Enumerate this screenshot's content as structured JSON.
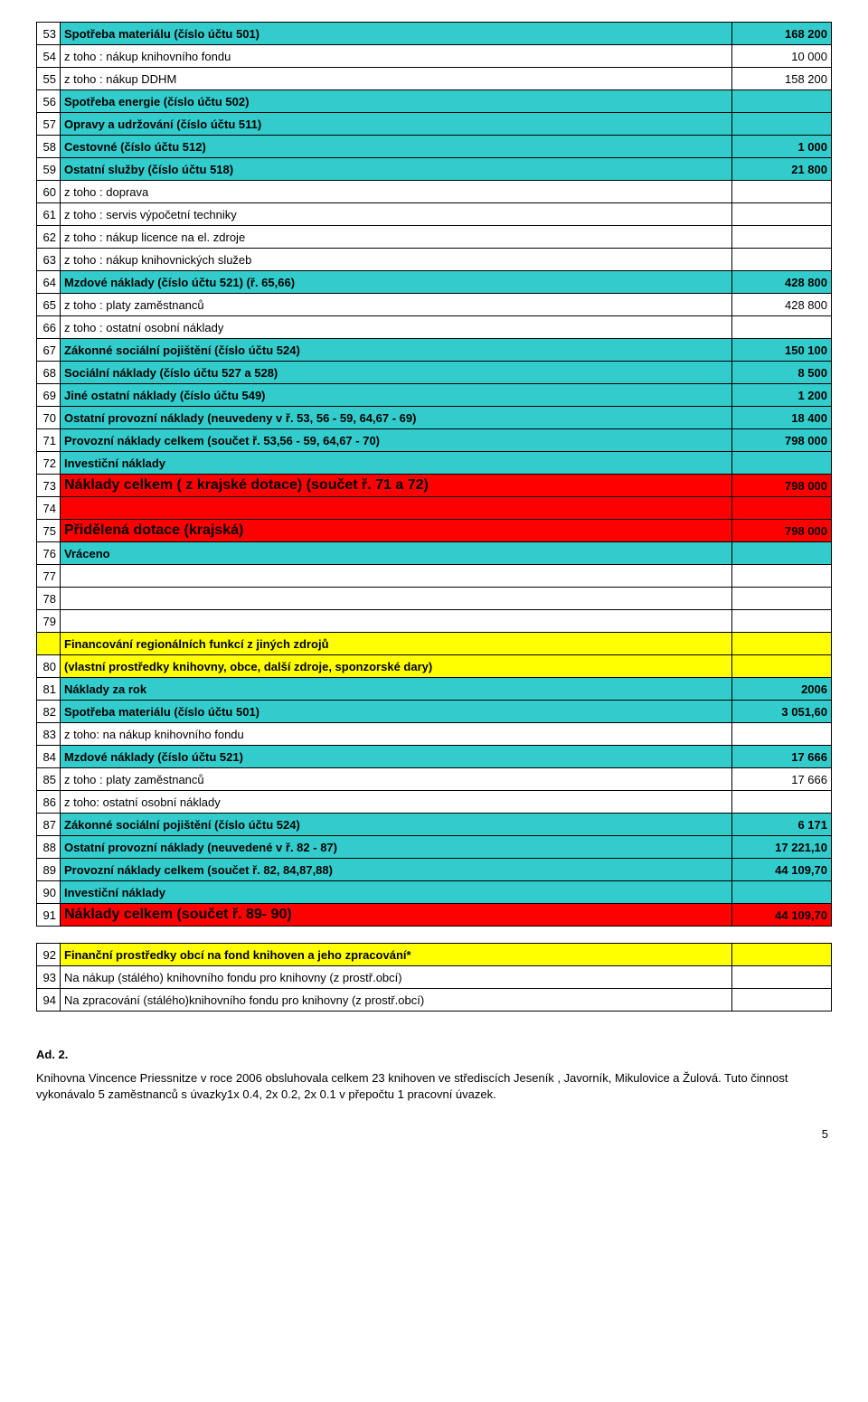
{
  "colors": {
    "cyan": "#33cccc",
    "red": "#ff0000",
    "yellow": "#ffff00",
    "white": "#ffffff"
  },
  "rows": [
    {
      "n": "53",
      "label": "Spotřeba materiálu (číslo účtu 501)",
      "val": "168 200",
      "bg": "cyan",
      "bold": true
    },
    {
      "n": "54",
      "label": " z toho : nákup knihovního fondu",
      "val": "10 000",
      "bg": "white"
    },
    {
      "n": "55",
      "label": " z toho : nákup DDHM",
      "val": "158 200",
      "bg": "white"
    },
    {
      "n": "56",
      "label": "Spotřeba energie (číslo účtu 502)",
      "val": "",
      "bg": "cyan",
      "bold": true
    },
    {
      "n": "57",
      "label": "Opravy a udržování (číslo účtu 511)",
      "val": "",
      "bg": "cyan",
      "bold": true
    },
    {
      "n": "58",
      "label": "Cestovné (číslo účtu 512)",
      "val": "1 000",
      "bg": "cyan",
      "bold": true
    },
    {
      "n": "59",
      "label": "Ostatní služby (číslo účtu 518)",
      "val": "21 800",
      "bg": "cyan",
      "bold": true
    },
    {
      "n": "60",
      "label": " z toho : doprava",
      "val": "",
      "bg": "white"
    },
    {
      "n": "61",
      "label": " z toho : servis výpočetní techniky",
      "val": "",
      "bg": "white"
    },
    {
      "n": "62",
      "label": " z toho : nákup licence na el. zdroje",
      "val": "",
      "bg": "white"
    },
    {
      "n": "63",
      "label": " z toho : nákup knihovnických služeb",
      "val": "",
      "bg": "white"
    },
    {
      "n": "64",
      "label": "Mzdové náklady (číslo účtu 521) (ř. 65,66)",
      "val": "428 800",
      "bg": "cyan",
      "bold": true
    },
    {
      "n": "65",
      "label": " z toho : platy zaměstnanců",
      "val": "428 800",
      "bg": "white"
    },
    {
      "n": "66",
      "label": " z toho :  ostatní osobní náklady",
      "val": "",
      "bg": "white"
    },
    {
      "n": "67",
      "label": "Zákonné sociální pojištění (číslo účtu 524)",
      "val": "150 100",
      "bg": "cyan",
      "bold": true
    },
    {
      "n": "68",
      "label": "Sociální náklady (číslo účtu 527 a 528)",
      "val": "8 500",
      "bg": "cyan",
      "bold": true
    },
    {
      "n": "69",
      "label": "Jiné ostatní náklady (číslo účtu 549)",
      "val": "1 200",
      "bg": "cyan",
      "bold": true
    },
    {
      "n": "70",
      "label": "Ostatní provozní náklady (neuvedeny v ř. 53, 56 - 59, 64,67 - 69)",
      "val": "18 400",
      "bg": "cyan",
      "bold": true
    },
    {
      "n": "71",
      "label": "Provozní náklady celkem (součet ř. 53,56 - 59, 64,67 - 70)",
      "val": "798 000",
      "bg": "cyan",
      "bold": true
    },
    {
      "n": "72",
      "label": "Investiční náklady",
      "val": "",
      "bg": "cyan",
      "bold": true
    },
    {
      "n": "73",
      "label": "Náklady celkem ( z krajské dotace) (součet ř. 71 a 72)",
      "val": "798 000",
      "bg": "red",
      "bold": true,
      "big": true
    },
    {
      "n": "74",
      "label": "",
      "val": "",
      "bg": "red"
    },
    {
      "n": "75",
      "label": "Přidělená dotace (krajská)",
      "val": "798 000",
      "bg": "red",
      "bold": true,
      "big": true
    },
    {
      "n": "76",
      "label": "Vráceno",
      "val": "",
      "bg": "cyan",
      "bold": true
    },
    {
      "n": "77",
      "label": "",
      "val": "",
      "bg": "white"
    },
    {
      "n": "78",
      "label": "",
      "val": "",
      "bg": "white"
    },
    {
      "n": "79",
      "label": "",
      "val": "",
      "bg": "white"
    },
    {
      "n": "",
      "label": "Financování regionálních funkcí z jiných zdrojů",
      "val": "",
      "bg": "yellow",
      "bold": true,
      "numbg": "yellow"
    },
    {
      "n": "80",
      "label": "(vlastní prostředky knihovny, obce, další zdroje, sponzorské dary)",
      "val": "",
      "bg": "yellow",
      "bold": true
    },
    {
      "n": "81",
      "label": "Náklady za rok",
      "val": "2006",
      "bg": "cyan",
      "bold": true
    },
    {
      "n": "82",
      "label": "Spotřeba materiálu (číslo účtu 501)",
      "val": "3 051,60",
      "bg": "cyan",
      "bold": true
    },
    {
      "n": "83",
      "label": "z toho: na nákup knihovního fondu",
      "val": "",
      "bg": "white"
    },
    {
      "n": "84",
      "label": "Mzdové náklady (číslo účtu 521)",
      "val": "17 666",
      "bg": "cyan",
      "bold": true
    },
    {
      "n": "85",
      "label": " z toho : platy zaměstnanců",
      "val": "17 666",
      "bg": "white"
    },
    {
      "n": "86",
      "label": " z toho: ostatní osobní náklady",
      "val": "",
      "bg": "white"
    },
    {
      "n": "87",
      "label": "Zákonné sociální pojištění (číslo účtu 524)",
      "val": "6 171",
      "bg": "cyan",
      "bold": true
    },
    {
      "n": "88",
      "label": "Ostatní provozní náklady (neuvedené v ř. 82 - 87)",
      "val": "17 221,10",
      "bg": "cyan",
      "bold": true
    },
    {
      "n": "89",
      "label": "Provozní náklady celkem (součet ř. 82, 84,87,88)",
      "val": "44 109,70",
      "bg": "cyan",
      "bold": true
    },
    {
      "n": "90",
      "label": "Investiční náklady",
      "val": "",
      "bg": "cyan",
      "bold": true
    },
    {
      "n": "91",
      "label": "Náklady celkem (součet ř. 89- 90)",
      "val": "44 109,70",
      "bg": "red",
      "bold": true,
      "big": true
    }
  ],
  "rows2": [
    {
      "n": "92",
      "label": "Finanční prostředky obcí na fond knihoven a jeho zpracování*",
      "val": "",
      "bg": "yellow",
      "bold": true
    },
    {
      "n": "93",
      "label": "Na nákup (stálého) knihovního fondu pro  knihovny (z prostř.obcí)",
      "val": "",
      "bg": "white"
    },
    {
      "n": "94",
      "label": "Na zpracování (stálého)knihovního fondu pro knihovny (z prostř.obcí)",
      "val": "",
      "bg": "white"
    }
  ],
  "footer": {
    "heading": "Ad. 2.",
    "paragraph": "Knihovna Vincence Priessnitze v roce 2006 obsluhovala celkem 23 knihoven ve střediscích Jeseník , Javorník, Mikulovice a Žulová. Tuto činnost vykonávalo 5 zaměstnanců s úvazky1x 0.4, 2x 0.2, 2x 0.1 v přepočtu 1 pracovní úvazek.",
    "pagenum": "5"
  }
}
